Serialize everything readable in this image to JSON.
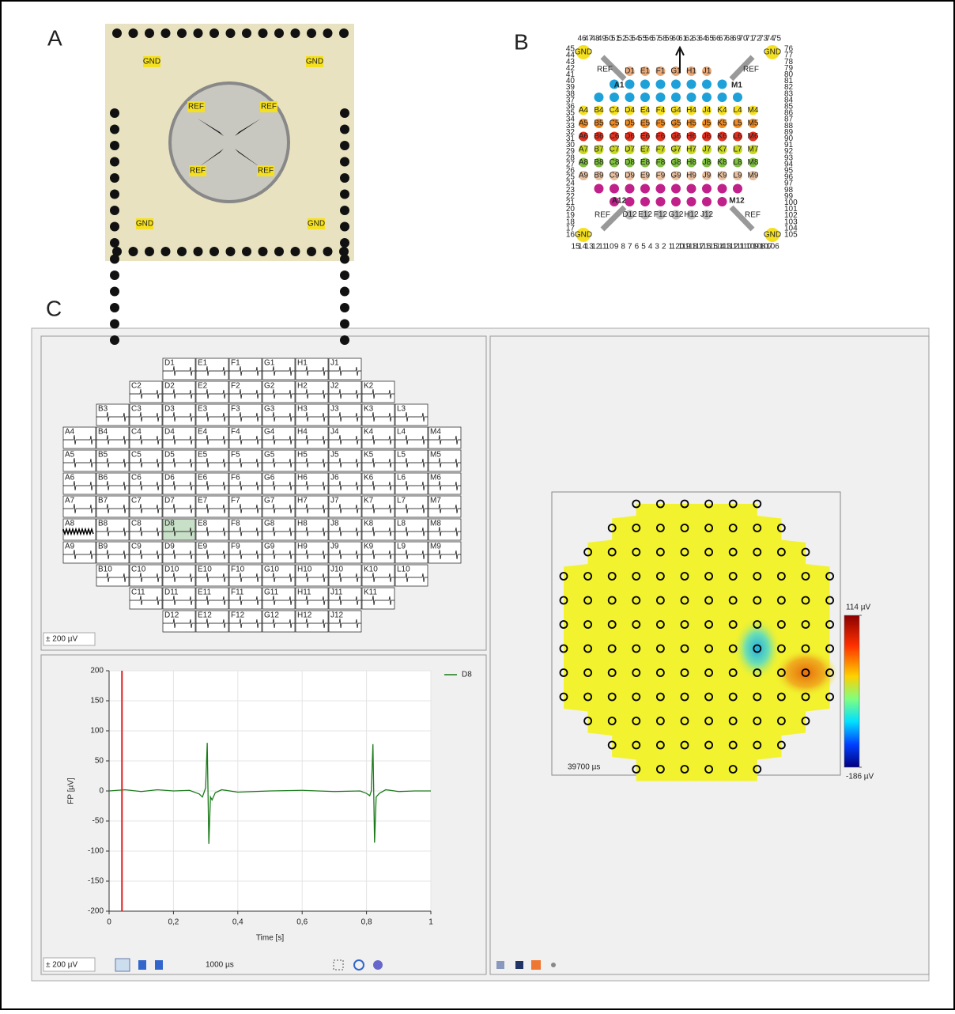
{
  "panels": {
    "a": {
      "label": "A",
      "gnd": [
        "GND",
        "GND",
        "GND",
        "GND"
      ],
      "ref": [
        "REF",
        "REF",
        "REF",
        "REF"
      ]
    },
    "b": {
      "label": "B",
      "gnd": [
        "GND",
        "GND",
        "GND",
        "GND"
      ],
      "ref": [
        "REF",
        "REF",
        "REF",
        "REF"
      ],
      "corners": [
        "A1",
        "M1",
        "A12",
        "M12"
      ],
      "rows": [
        [
          "D1",
          "E1",
          "F1",
          "G1",
          "H1",
          "J1"
        ],
        [
          null,
          null,
          null,
          null,
          null,
          null,
          null,
          null
        ],
        [
          null,
          null,
          null,
          null,
          null,
          null,
          null,
          null,
          null,
          null
        ],
        [
          "A4",
          "B4",
          "C4",
          "D4",
          "E4",
          "F4",
          "G4",
          "H4",
          "J4",
          "K4",
          "L4",
          "M4"
        ],
        [
          "A5",
          "B5",
          "C5",
          "D5",
          "E5",
          "F5",
          "G5",
          "H5",
          "J5",
          "K5",
          "L5",
          "M5"
        ],
        [
          "A6",
          "B6",
          "C6",
          "D6",
          "E6",
          "F6",
          "G6",
          "H6",
          "J6",
          "K6",
          "L6",
          "M6"
        ],
        [
          "A7",
          "B7",
          "C7",
          "D7",
          "E7",
          "F7",
          "G7",
          "H7",
          "J7",
          "K7",
          "L7",
          "M7"
        ],
        [
          "A8",
          "B8",
          "C8",
          "D8",
          "E8",
          "F8",
          "G8",
          "H8",
          "J8",
          "K8",
          "L8",
          "M8"
        ],
        [
          "A9",
          "B9",
          "C9",
          "D9",
          "E9",
          "F9",
          "G9",
          "H9",
          "J9",
          "K9",
          "L9",
          "M9"
        ],
        [
          null,
          null,
          null,
          null,
          null,
          null,
          null,
          null,
          null,
          null
        ],
        [
          null,
          null,
          null,
          null,
          null,
          null,
          null,
          null
        ],
        [
          "D12",
          "E12",
          "F12",
          "G12",
          "H12",
          "J12"
        ]
      ],
      "pins_top": [
        46,
        47,
        48,
        49,
        50,
        51,
        52,
        53,
        54,
        55,
        56,
        57,
        58,
        59,
        60,
        61,
        62,
        63,
        64,
        65,
        66,
        67,
        68,
        69,
        70,
        71,
        72,
        73,
        74,
        75
      ],
      "pins_right": [
        76,
        77,
        78,
        79,
        80,
        81,
        82,
        83,
        84,
        85,
        86,
        87,
        88,
        89,
        90,
        91,
        92,
        93,
        94,
        95,
        96,
        97,
        98,
        99,
        100,
        101,
        102,
        103,
        104,
        105
      ],
      "pins_bottom": [
        15,
        14,
        13,
        12,
        11,
        10,
        9,
        8,
        7,
        6,
        5,
        4,
        3,
        2,
        1,
        120,
        119,
        118,
        117,
        116,
        115,
        114,
        113,
        112,
        111,
        110,
        109,
        108,
        107,
        106
      ],
      "pins_left": [
        45,
        44,
        43,
        42,
        41,
        40,
        39,
        38,
        37,
        36,
        35,
        34,
        33,
        32,
        31,
        30,
        29,
        28,
        27,
        26,
        25,
        24,
        23,
        22,
        21,
        20,
        19,
        18,
        17,
        16
      ]
    },
    "c": {
      "label": "C"
    }
  },
  "mea_layout": {
    "rows": [
      [
        "D1",
        "E1",
        "F1",
        "G1",
        "H1",
        "J1"
      ],
      [
        "C2",
        "D2",
        "E2",
        "F2",
        "G2",
        "H2",
        "J2",
        "K2"
      ],
      [
        "B3",
        "C3",
        "D3",
        "E3",
        "F3",
        "G3",
        "H3",
        "J3",
        "K3",
        "L3"
      ],
      [
        "A4",
        "B4",
        "C4",
        "D4",
        "E4",
        "F4",
        "G4",
        "H4",
        "J4",
        "K4",
        "L4",
        "M4"
      ],
      [
        "A5",
        "B5",
        "C5",
        "D5",
        "E5",
        "F5",
        "G5",
        "H5",
        "J5",
        "K5",
        "L5",
        "M5"
      ],
      [
        "A6",
        "B6",
        "C6",
        "D6",
        "E6",
        "F6",
        "G6",
        "H6",
        "J6",
        "K6",
        "L6",
        "M6"
      ],
      [
        "A7",
        "B7",
        "C7",
        "D7",
        "E7",
        "F7",
        "G7",
        "H7",
        "J7",
        "K7",
        "L7",
        "M7"
      ],
      [
        "A8",
        "B8",
        "C8",
        "D8",
        "E8",
        "F8",
        "G8",
        "H8",
        "J8",
        "K8",
        "L8",
        "M8"
      ],
      [
        "A9",
        "B9",
        "C9",
        "D9",
        "E9",
        "F9",
        "G9",
        "H9",
        "J9",
        "K9",
        "L9",
        "M9"
      ],
      [
        "B10",
        "C10",
        "D10",
        "E10",
        "F10",
        "G10",
        "H10",
        "J10",
        "K10",
        "L10"
      ],
      [
        "C11",
        "D11",
        "E11",
        "F11",
        "G11",
        "H11",
        "J11",
        "K11"
      ],
      [
        "D12",
        "E12",
        "F12",
        "G12",
        "H12",
        "J12"
      ]
    ],
    "range": "± 200 µV"
  },
  "toolbar": {
    "range": "± 200 µV",
    "interval": "1000 µs"
  },
  "heatmap": {
    "time": "39700 µs",
    "colorbar": [
      {
        "value": 114,
        "label": "114 µV"
      },
      {
        "value": -186,
        "label": "-186 µV"
      }
    ]
  },
  "chart_data": {
    "type": "line",
    "xlabel": "Time [s]",
    "ylabel": "FP [µV]",
    "x": [
      0,
      0.05,
      0.1,
      0.15,
      0.2,
      0.25,
      0.28,
      0.29,
      0.3,
      0.305,
      0.31,
      0.315,
      0.32,
      0.33,
      0.35,
      0.4,
      0.5,
      0.6,
      0.7,
      0.78,
      0.8,
      0.81,
      0.815,
      0.82,
      0.825,
      0.83,
      0.84,
      0.86,
      0.9,
      0.95,
      1
    ],
    "series": [
      {
        "name": "D8",
        "color": "#1a7a1a",
        "values": [
          0,
          2,
          -1,
          2,
          0,
          1,
          -5,
          -10,
          5,
          80,
          -88,
          -10,
          -15,
          -3,
          2,
          -2,
          0,
          1,
          -1,
          0,
          -4,
          -8,
          0,
          78,
          -86,
          -10,
          -4,
          2,
          -1,
          0,
          0
        ]
      }
    ],
    "xlim": [
      0,
      1
    ],
    "ylim": [
      -200,
      200
    ],
    "xticks": [
      0,
      {
        "value": 0.2,
        "label": "0,2"
      },
      {
        "value": 0.4,
        "label": "0,4"
      },
      {
        "value": 0.6,
        "label": "0,6"
      },
      {
        "value": 0.8,
        "label": "0,8"
      },
      1
    ],
    "yticks": [
      -200,
      -150,
      -100,
      -50,
      0,
      50,
      100,
      150,
      200
    ],
    "grid": true,
    "cursor_x": 0.04,
    "cursor_color": "#e02020"
  }
}
